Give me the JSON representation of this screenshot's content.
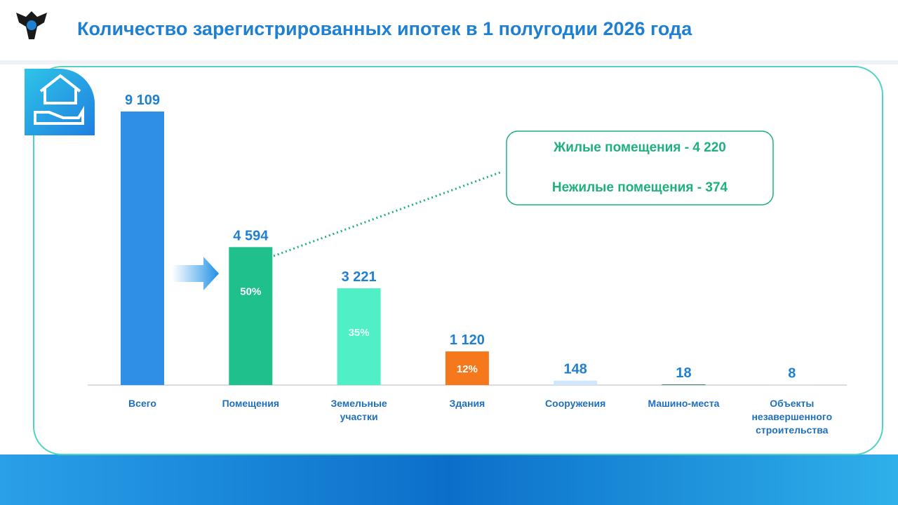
{
  "chart_data": {
    "type": "bar",
    "title": "Количество зарегистрированных ипотек в 1 полугодии 2026 года",
    "categories": [
      "Всего",
      "Помещения",
      "Земельные участки",
      "Здания",
      "Сооружения",
      "Машино-места",
      "Объекты незавершенного строительства"
    ],
    "values": [
      9109,
      4594,
      3221,
      1120,
      148,
      18,
      8
    ],
    "value_labels": [
      "9 109",
      "4 594",
      "3 221",
      "1 120",
      "148",
      "18",
      "8"
    ],
    "colors": [
      "#2f8fe6",
      "#1fc08c",
      "#4ff0c6",
      "#f5791c",
      "#cfe6fb",
      "#0d6b4c",
      "#f8e3cb"
    ],
    "share_values": [
      null,
      50,
      35,
      12,
      null,
      null,
      null
    ],
    "share_labels": [
      null,
      "50%",
      "35%",
      "12%",
      null,
      null,
      null
    ],
    "annotations": [
      "Жилые помещения - 4 220",
      "Нежилые помещения - 374"
    ]
  }
}
